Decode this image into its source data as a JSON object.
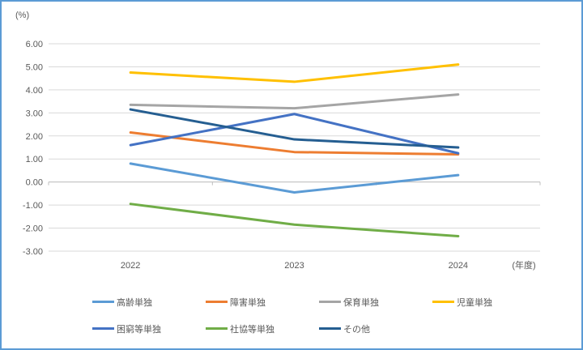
{
  "frame": {
    "border_color": "#5B9BD5",
    "background": "#FFFFFF"
  },
  "chart_data": {
    "type": "line",
    "title": "",
    "ylabel_unit": "(%)",
    "xlabel_unit": "(年度)",
    "categories": [
      "2022",
      "2023",
      "2024"
    ],
    "ylim": [
      -3,
      6
    ],
    "ytick_step": 1,
    "yticks": [
      {
        "label": "6.00",
        "value": 6
      },
      {
        "label": "5.00",
        "value": 5
      },
      {
        "label": "4.00",
        "value": 4
      },
      {
        "label": "3.00",
        "value": 3
      },
      {
        "label": "2.00",
        "value": 2
      },
      {
        "label": "1.00",
        "value": 1
      },
      {
        "label": "0.00",
        "value": 0
      },
      {
        "label": "-1.00",
        "value": -1
      },
      {
        "label": "-2.00",
        "value": -2
      },
      {
        "label": "-3.00",
        "value": -3
      }
    ],
    "grid": true,
    "legend_position": "bottom",
    "gridline_color": "#D9D9D9",
    "axis_color": "#BFBFBF",
    "label_color": "#595959",
    "series": [
      {
        "name": "高齢単独",
        "color": "#5B9BD5",
        "values": [
          0.8,
          -0.45,
          0.3
        ]
      },
      {
        "name": "障害単独",
        "color": "#ED7D31",
        "values": [
          2.15,
          1.3,
          1.2
        ]
      },
      {
        "name": "保育単独",
        "color": "#A5A5A5",
        "values": [
          3.35,
          3.2,
          3.8
        ]
      },
      {
        "name": "児童単独",
        "color": "#FFC000",
        "values": [
          4.75,
          4.35,
          5.1
        ]
      },
      {
        "name": "困窮等単独",
        "color": "#4472C4",
        "values": [
          1.6,
          2.95,
          1.25
        ]
      },
      {
        "name": "社協等単独",
        "color": "#70AD47",
        "values": [
          -0.95,
          -1.85,
          -2.35
        ]
      },
      {
        "name": "その他",
        "color": "#255E91",
        "values": [
          3.15,
          1.85,
          1.5
        ]
      }
    ]
  }
}
